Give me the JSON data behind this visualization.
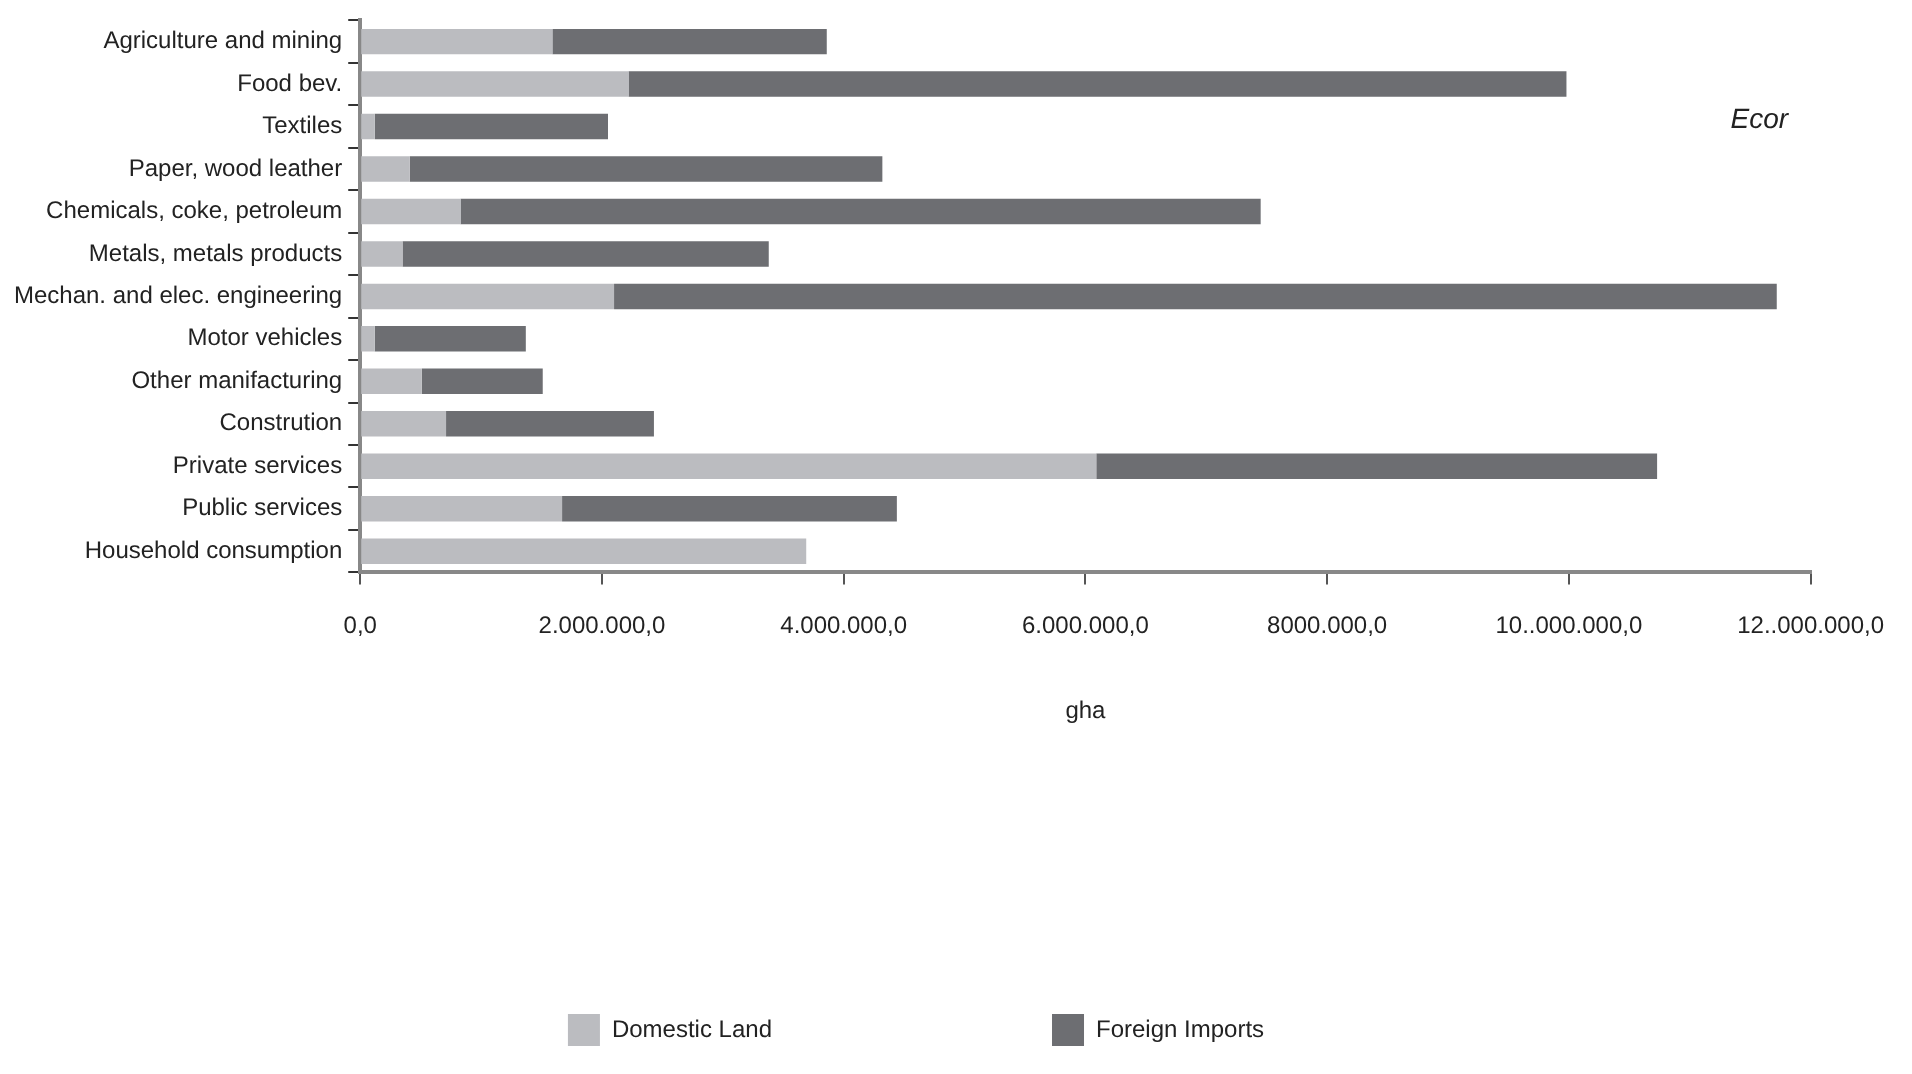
{
  "chart_data": {
    "type": "bar",
    "orientation": "horizontal",
    "stacked": true,
    "xlabel": "gha",
    "annotations": [
      "Ecor"
    ],
    "categories": [
      "Agriculture and mining",
      "Food bev.",
      "Textiles",
      "Paper, wood leather",
      "Chemicals, coke, petroleum",
      "Metals, metals products",
      "Mechan. and elec. engineering",
      "Motor vehicles",
      "Other manifacturing",
      "Constrution",
      "Private services",
      "Public services",
      "Household consumption"
    ],
    "series": [
      {
        "name": "Domestic Land",
        "color": "#bbbcc0",
        "values": [
          1590000,
          2220000,
          120000,
          410000,
          830000,
          350000,
          2100000,
          120000,
          510000,
          710000,
          6090000,
          1670000,
          3690000
        ]
      },
      {
        "name": "Foreign Imports",
        "color": "#6d6e72",
        "values": [
          2270000,
          7760000,
          1930000,
          3910000,
          6620000,
          3030000,
          9620000,
          1250000,
          1000000,
          1720000,
          4640000,
          2770000,
          0
        ]
      }
    ],
    "xlim": [
      0,
      12000000
    ],
    "xticks": [
      {
        "value": 0,
        "label": "0,0"
      },
      {
        "value": 2000000,
        "label": "2.000.000,0"
      },
      {
        "value": 4000000,
        "label": "4.000.000,0"
      },
      {
        "value": 6000000,
        "label": "6.000.000,0"
      },
      {
        "value": 8000000,
        "label": "8000.000,0"
      },
      {
        "value": 10000000,
        "label": "10..000.000,0"
      },
      {
        "value": 12000000,
        "label": "12..000.000,0"
      }
    ],
    "grid": false,
    "legend": "bottom"
  }
}
